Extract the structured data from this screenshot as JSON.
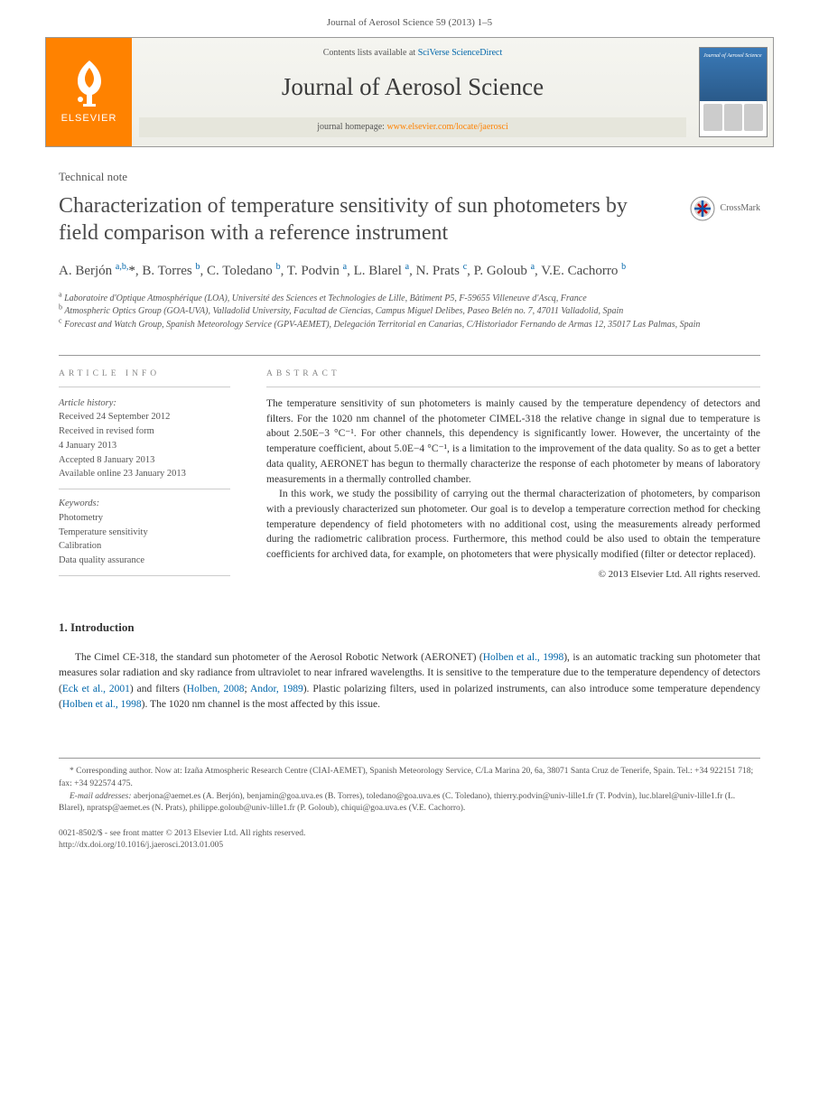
{
  "journal_header": "Journal of Aerosol Science 59 (2013) 1–5",
  "banner": {
    "publisher": "ELSEVIER",
    "contents_prefix": "Contents lists available at ",
    "contents_link": "SciVerse ScienceDirect",
    "journal_title": "Journal of Aerosol Science",
    "homepage_prefix": "journal homepage: ",
    "homepage_link": "www.elsevier.com/locate/jaerosci",
    "cover_title": "Journal of Aerosol Science"
  },
  "article_type": "Technical note",
  "title": "Characterization of temperature sensitivity of sun photometers by field comparison with a reference instrument",
  "crossmark": "CrossMark",
  "authors_html": "A. Berjón <sup>a,b,</sup><span class='ast'>*</span>, B. Torres <sup>b</sup>, C. Toledano <sup>b</sup>, T. Podvin <sup>a</sup>, L. Blarel <sup>a</sup>, N. Prats <sup>c</sup>, P. Goloub <sup>a</sup>, V.E. Cachorro <sup>b</sup>",
  "affiliations": {
    "a": "Laboratoire d'Optique Atmosphérique (LOA), Université des Sciences et Technologies de Lille, Bâtiment P5, F-59655 Villeneuve d'Ascq, France",
    "b": "Atmospheric Optics Group (GOA-UVA), Valladolid University, Facultad de Ciencias, Campus Miguel Delibes, Paseo Belén no. 7, 47011 Valladolid, Spain",
    "c": "Forecast and Watch Group, Spanish Meteorology Service (GPV-AEMET), Delegación Territorial en Canarias, C/Historiador Fernando de Armas 12, 35017 Las Palmas, Spain"
  },
  "info": {
    "heading": "ARTICLE INFO",
    "history_label": "Article history:",
    "history": [
      "Received 24 September 2012",
      "Received in revised form",
      "4 January 2013",
      "Accepted 8 January 2013",
      "Available online 23 January 2013"
    ],
    "keywords_label": "Keywords:",
    "keywords": [
      "Photometry",
      "Temperature sensitivity",
      "Calibration",
      "Data quality assurance"
    ]
  },
  "abstract": {
    "heading": "ABSTRACT",
    "p1": "The temperature sensitivity of sun photometers is mainly caused by the temperature dependency of detectors and filters. For the 1020 nm channel of the photometer CIMEL-318 the relative change in signal due to temperature is about 2.50E−3 °C⁻¹. For other channels, this dependency is significantly lower. However, the uncertainty of the temperature coefficient, about 5.0E−4 °C⁻¹, is a limitation to the improvement of the data quality. So as to get a better data quality, AERONET has begun to thermally characterize the response of each photometer by means of laboratory measurements in a thermally controlled chamber.",
    "p2": "In this work, we study the possibility of carrying out the thermal characterization of photometers, by comparison with a previously characterized sun photometer. Our goal is to develop a temperature correction method for checking temperature dependency of field photometers with no additional cost, using the measurements already performed during the radiometric calibration process. Furthermore, this method could be also used to obtain the temperature coefficients for archived data, for example, on photometers that were physically modified (filter or detector replaced).",
    "copyright": "© 2013 Elsevier Ltd. All rights reserved."
  },
  "intro": {
    "heading": "1.  Introduction",
    "text_pre": "The Cimel CE-318, the standard sun photometer of the Aerosol Robotic Network (AERONET) (",
    "ref1": "Holben et al., 1998",
    "text_mid1": "), is an automatic tracking sun photometer that measures solar radiation and sky radiance from ultraviolet to near infrared wavelengths. It is sensitive to the temperature due to the temperature dependency of detectors (",
    "ref2": "Eck et al., 2001",
    "text_mid2": ") and filters (",
    "ref3": "Holben, 2008",
    "text_sep": "; ",
    "ref4": "Andor, 1989",
    "text_mid3": "). Plastic polarizing filters, used in polarized instruments, can also introduce some temperature dependency (",
    "ref5": "Holben et al., 1998",
    "text_post": "). The 1020 nm channel is the most affected by this issue."
  },
  "footnotes": {
    "corr": "* Corresponding author. Now at: Izaña Atmospheric Research Centre (CIAI-AEMET), Spanish Meteorology Service, C/La Marina 20, 6a, 38071 Santa Cruz de Tenerife, Spain. Tel.: +34 922151 718; fax: +34 922574 475.",
    "emails_label": "E-mail addresses:",
    "emails": " aberjona@aemet.es (A. Berjón), benjamin@goa.uva.es (B. Torres), toledano@goa.uva.es (C. Toledano), thierry.podvin@univ-lille1.fr (T. Podvin), luc.blarel@univ-lille1.fr (L. Blarel), npratsp@aemet.es (N. Prats), philippe.goloub@univ-lille1.fr (P. Goloub), chiqui@goa.uva.es (V.E. Cachorro)."
  },
  "bottom": {
    "line1": "0021-8502/$ - see front matter © 2013 Elsevier Ltd. All rights reserved.",
    "line2": "http://dx.doi.org/10.1016/j.jaerosci.2013.01.005"
  },
  "colors": {
    "elsevier_orange": "#ff8200",
    "link_blue": "#0066aa",
    "text": "#333333",
    "muted": "#555555",
    "cover_blue": "#3a7ab8"
  }
}
